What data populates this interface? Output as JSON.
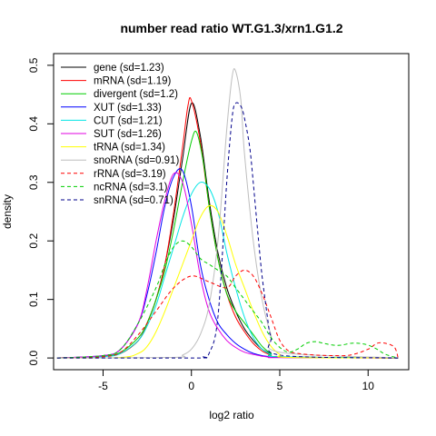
{
  "chart_data": {
    "type": "line",
    "title": "number read ratio WT.G1.3/xrn1.G1.2",
    "xlabel": "log2 ratio",
    "ylabel": "density",
    "xlim": [
      -7.8,
      12.3
    ],
    "ylim": [
      -0.02,
      0.52
    ],
    "xticks": [
      -5,
      0,
      5,
      10
    ],
    "yticks": [
      0.0,
      0.1,
      0.2,
      0.3,
      0.4,
      0.5
    ],
    "xtick_labels": [
      "-5",
      "0",
      "5",
      "10"
    ],
    "ytick_labels": [
      "0.0",
      "0.1",
      "0.2",
      "0.3",
      "0.4",
      "0.5"
    ],
    "grid": false,
    "legend_position": "top-left",
    "series": [
      {
        "name": "gene (sd=1.23)",
        "color": "#000000",
        "dash": "solid",
        "x": [
          -7.6,
          -5,
          -4,
          -3,
          -2.5,
          -2,
          -1.5,
          -1,
          -0.5,
          0,
          0.5,
          1,
          1.5,
          2,
          2.5,
          3,
          3.5,
          4,
          4.5,
          5,
          11.7
        ],
        "y": [
          0,
          0.003,
          0.008,
          0.03,
          0.06,
          0.1,
          0.16,
          0.24,
          0.34,
          0.435,
          0.38,
          0.27,
          0.18,
          0.12,
          0.08,
          0.05,
          0.03,
          0.015,
          0.007,
          0.002,
          0
        ]
      },
      {
        "name": "mRNA (sd=1.19)",
        "color": "#ff0000",
        "dash": "solid",
        "x": [
          -7.6,
          -5,
          -4,
          -3,
          -2.5,
          -2,
          -1.5,
          -1,
          -0.5,
          -0.2,
          0,
          0.5,
          1,
          1.5,
          2,
          2.5,
          3,
          3.5,
          4,
          4.5,
          5,
          11.7
        ],
        "y": [
          0,
          0.003,
          0.008,
          0.03,
          0.06,
          0.1,
          0.16,
          0.25,
          0.36,
          0.43,
          0.44,
          0.37,
          0.26,
          0.17,
          0.11,
          0.07,
          0.045,
          0.025,
          0.012,
          0.005,
          0.001,
          0
        ]
      },
      {
        "name": "divergent (sd=1.2)",
        "color": "#00cd00",
        "dash": "solid",
        "x": [
          -7.6,
          -5,
          -4,
          -3,
          -2.5,
          -2,
          -1.5,
          -1,
          -0.5,
          0,
          0.3,
          0.7,
          1,
          1.5,
          2,
          2.5,
          3,
          3.5,
          4,
          4.5,
          5,
          11.7
        ],
        "y": [
          0,
          0.003,
          0.01,
          0.035,
          0.06,
          0.1,
          0.15,
          0.22,
          0.3,
          0.37,
          0.385,
          0.33,
          0.26,
          0.17,
          0.11,
          0.08,
          0.06,
          0.04,
          0.02,
          0.008,
          0.002,
          0
        ]
      },
      {
        "name": "XUT (sd=1.33)",
        "color": "#0000ff",
        "dash": "solid",
        "x": [
          -7.6,
          -5,
          -4,
          -3,
          -2.5,
          -2,
          -1.5,
          -1,
          -0.5,
          0,
          0.5,
          1,
          1.5,
          2,
          2.5,
          3,
          3.5,
          4,
          4.5,
          5,
          11.7
        ],
        "y": [
          0,
          0.004,
          0.015,
          0.06,
          0.11,
          0.18,
          0.26,
          0.31,
          0.32,
          0.26,
          0.16,
          0.1,
          0.06,
          0.04,
          0.025,
          0.015,
          0.008,
          0.004,
          0.002,
          0.001,
          0
        ]
      },
      {
        "name": "CUT (sd=1.21)",
        "color": "#00e5e5",
        "dash": "solid",
        "x": [
          -7.6,
          -5,
          -4,
          -3,
          -2.5,
          -2,
          -1.5,
          -1,
          -0.5,
          0,
          0.5,
          1,
          1.5,
          2,
          2.5,
          3,
          3.5,
          4,
          4.5,
          5,
          11.7
        ],
        "y": [
          0,
          0.002,
          0.008,
          0.03,
          0.055,
          0.09,
          0.14,
          0.19,
          0.24,
          0.28,
          0.3,
          0.29,
          0.25,
          0.18,
          0.12,
          0.07,
          0.035,
          0.015,
          0.006,
          0.002,
          0
        ]
      },
      {
        "name": "SUT (sd=1.26)",
        "color": "#e000e0",
        "dash": "solid",
        "x": [
          -7.6,
          -5,
          -4,
          -3,
          -2.5,
          -2,
          -1.5,
          -1,
          -0.5,
          0,
          0.5,
          1,
          1.5,
          2,
          2.5,
          3,
          3.5,
          4,
          4.5,
          5,
          11.7
        ],
        "y": [
          0,
          0.004,
          0.015,
          0.06,
          0.12,
          0.2,
          0.27,
          0.315,
          0.3,
          0.23,
          0.14,
          0.08,
          0.05,
          0.03,
          0.018,
          0.01,
          0.006,
          0.003,
          0.001,
          0.0005,
          0
        ]
      },
      {
        "name": "tRNA (sd=1.34)",
        "color": "#ffff00",
        "dash": "solid",
        "x": [
          -7.6,
          -4,
          -3,
          -2.5,
          -2,
          -1.5,
          -1,
          -0.5,
          0,
          0.5,
          1,
          1.5,
          2,
          2.5,
          3,
          3.5,
          4,
          4.5,
          5,
          5.5,
          11.7
        ],
        "y": [
          0,
          0.001,
          0.008,
          0.02,
          0.045,
          0.08,
          0.12,
          0.16,
          0.2,
          0.24,
          0.26,
          0.25,
          0.21,
          0.16,
          0.12,
          0.08,
          0.045,
          0.02,
          0.006,
          0.001,
          0
        ]
      },
      {
        "name": "snoRNA (sd=0.91)",
        "color": "#bebebe",
        "dash": "solid",
        "x": [
          -7.6,
          -1,
          -0.5,
          0,
          0.5,
          1,
          1.5,
          2,
          2.3,
          2.5,
          2.8,
          3,
          3.5,
          4,
          4.5,
          5,
          11.7
        ],
        "y": [
          0,
          0.001,
          0.005,
          0.015,
          0.04,
          0.09,
          0.2,
          0.39,
          0.48,
          0.49,
          0.44,
          0.35,
          0.2,
          0.1,
          0.04,
          0.01,
          0
        ]
      },
      {
        "name": "rRNA (sd=3.19)",
        "color": "#ff0000",
        "dash": "dashed",
        "x": [
          -7.6,
          -5,
          -4,
          -3,
          -2,
          -1,
          0,
          1,
          2,
          2.5,
          3,
          3.5,
          4,
          4.5,
          5,
          5.5,
          6,
          7,
          8,
          9,
          10,
          10.5,
          11,
          11.5,
          11.7
        ],
        "y": [
          0,
          0.002,
          0.01,
          0.04,
          0.08,
          0.12,
          0.14,
          0.13,
          0.12,
          0.14,
          0.15,
          0.14,
          0.11,
          0.07,
          0.03,
          0.012,
          0.008,
          0.005,
          0.004,
          0.005,
          0.015,
          0.025,
          0.025,
          0.018,
          0
        ]
      },
      {
        "name": "ncRNA (sd=3.1)",
        "color": "#00cd00",
        "dash": "dashed",
        "x": [
          -7.6,
          -5,
          -4,
          -3,
          -2,
          -1.5,
          -1,
          -0.5,
          0,
          0.5,
          1,
          1.5,
          2,
          2.5,
          3,
          3.5,
          4,
          4.5,
          5,
          5.5,
          6,
          6.5,
          7,
          7.5,
          8,
          8.5,
          9,
          9.5,
          10,
          10.5,
          11,
          11.7
        ],
        "y": [
          0,
          0.004,
          0.015,
          0.06,
          0.12,
          0.16,
          0.19,
          0.2,
          0.19,
          0.17,
          0.16,
          0.15,
          0.14,
          0.12,
          0.1,
          0.08,
          0.06,
          0.035,
          0.018,
          0.01,
          0.015,
          0.025,
          0.028,
          0.025,
          0.022,
          0.022,
          0.025,
          0.025,
          0.022,
          0.015,
          0.006,
          0
        ]
      },
      {
        "name": "snRNA (sd=0.71)",
        "color": "#00008b",
        "dash": "dashed",
        "x": [
          -7.6,
          0.3,
          0.6,
          1,
          1.5,
          2,
          2.3,
          2.5,
          2.8,
          3,
          3.3,
          3.5,
          3.8,
          4,
          4.3,
          4.5,
          5,
          11.7
        ],
        "y": [
          0,
          0,
          0.002,
          0.008,
          0.07,
          0.3,
          0.41,
          0.435,
          0.43,
          0.41,
          0.36,
          0.3,
          0.2,
          0.14,
          0.07,
          0.035,
          0.005,
          0
        ]
      }
    ]
  }
}
